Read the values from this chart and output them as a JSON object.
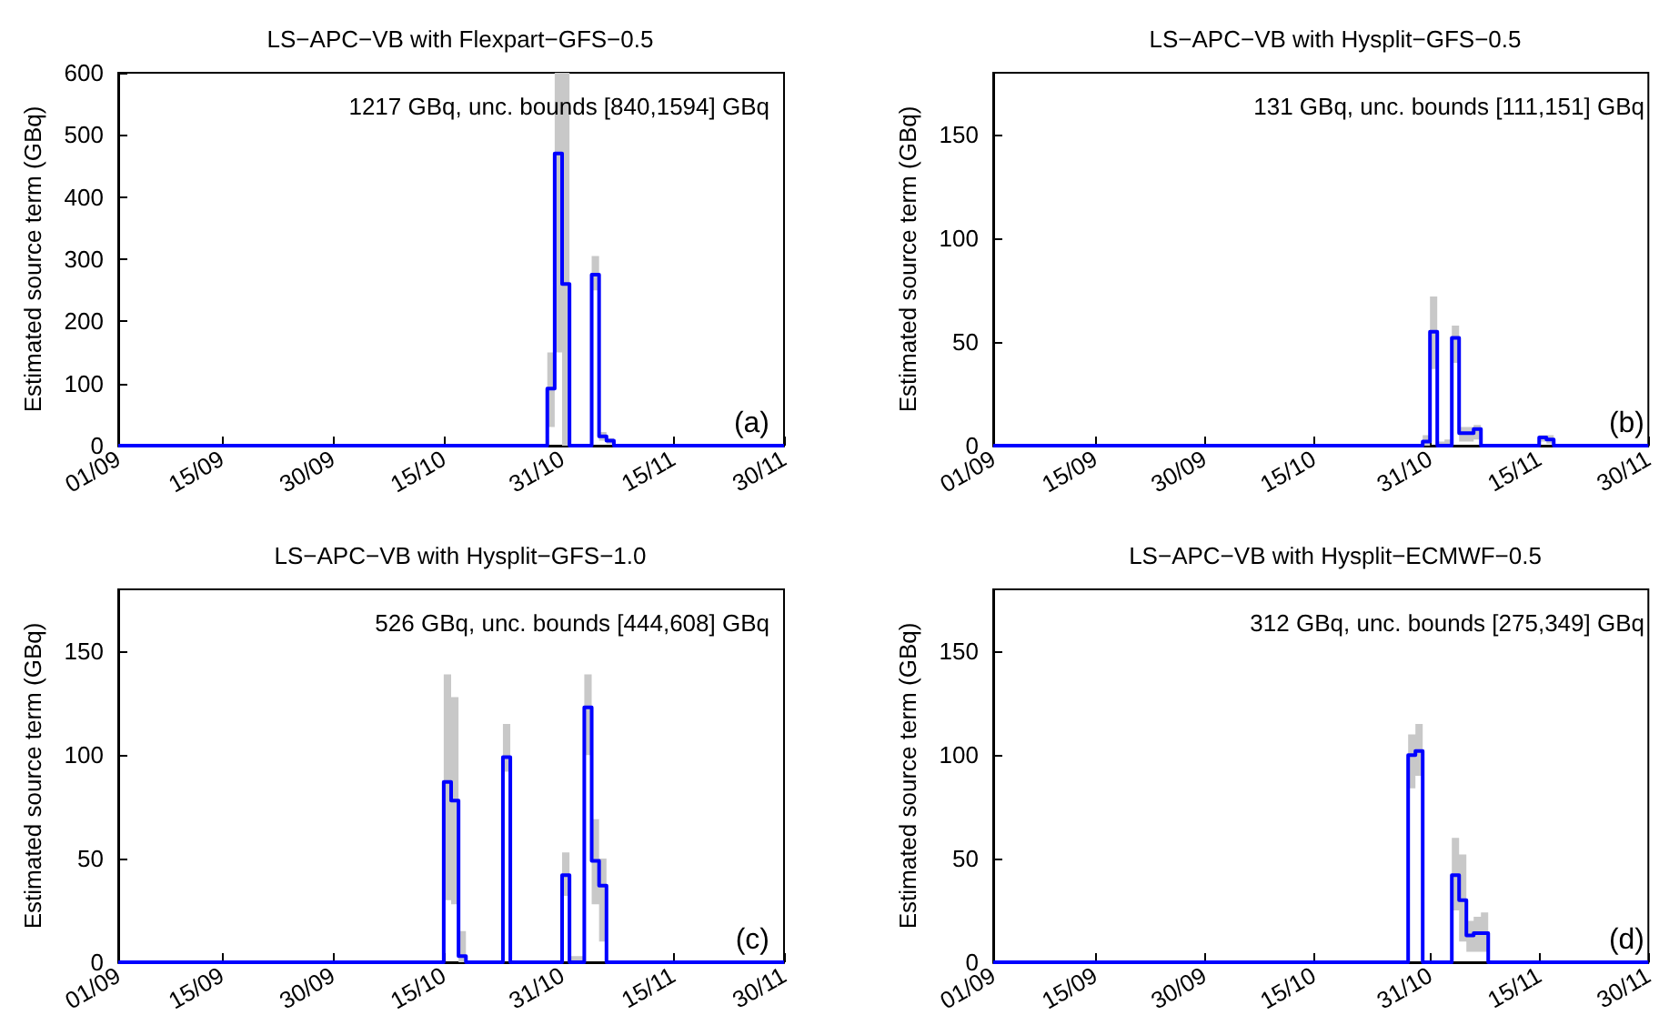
{
  "chart_data": [
    {
      "type": "step",
      "title": "LS−APC−VB with Flexpart−GFS−0.5",
      "ylabel": "Estimated source term (GBq)",
      "annotations": [
        "1217 GBq, unc. bounds [840,1594] GBq",
        "(a)"
      ],
      "x": [
        "--09-01",
        "--10-28",
        "--10-29",
        "--10-30",
        "--10-31",
        "--11-01",
        "--11-02",
        "--11-03",
        "--11-04",
        "--11-05",
        "--11-06",
        "--11-07",
        "--11-30"
      ],
      "series": [
        {
          "color": "#0000ff",
          "values": [
            0,
            0,
            92,
            470,
            260,
            0,
            0,
            0,
            275,
            15,
            8,
            0,
            0
          ],
          "lower": [
            0,
            0,
            30,
            150,
            0,
            0,
            0,
            0,
            250,
            8,
            3,
            0,
            0
          ],
          "upper": [
            0,
            0,
            150,
            600,
            600,
            0,
            0,
            0,
            305,
            22,
            12,
            0,
            0
          ]
        }
      ],
      "xlim": [
        "--09-01",
        "--11-30"
      ],
      "xticks": [
        {
          "value": "--09-01",
          "label": "01/09"
        },
        {
          "value": "--09-15",
          "label": "15/09"
        },
        {
          "value": "--09-30",
          "label": "30/09"
        },
        {
          "value": "--10-15",
          "label": "15/10"
        },
        {
          "value": "--10-31",
          "label": "31/10"
        },
        {
          "value": "--11-15",
          "label": "15/11"
        },
        {
          "value": "--11-30",
          "label": "30/11"
        }
      ],
      "ylim": [
        0,
        600
      ],
      "yticks": [
        0,
        100,
        200,
        300,
        400,
        500,
        600
      ],
      "grid": false
    },
    {
      "type": "step",
      "title": "LS−APC−VB with Hysplit−GFS−0.5",
      "ylabel": "Estimated source term (GBq)",
      "annotations": [
        "131 GBq, unc. bounds [111,151] GBq",
        "(b)"
      ],
      "x": [
        "--09-01",
        "--10-29",
        "--10-30",
        "--10-31",
        "--11-01",
        "--11-02",
        "--11-03",
        "--11-04",
        "--11-05",
        "--11-06",
        "--11-07",
        "--11-14",
        "--11-15",
        "--11-16",
        "--11-17",
        "--11-30"
      ],
      "series": [
        {
          "color": "#0000ff",
          "values": [
            0,
            0,
            2,
            55,
            0,
            0,
            52,
            6,
            6,
            8,
            0,
            0,
            4,
            3,
            0,
            0
          ],
          "lower": [
            0,
            0,
            0,
            37,
            0,
            0,
            40,
            2,
            2,
            3,
            0,
            0,
            2,
            1,
            0,
            0
          ],
          "upper": [
            0,
            0,
            5,
            72,
            2,
            3,
            58,
            9,
            9,
            10,
            0,
            0,
            5,
            5,
            0,
            0
          ]
        }
      ],
      "xlim": [
        "--09-01",
        "--11-30"
      ],
      "xticks": [
        {
          "value": "--09-01",
          "label": "01/09"
        },
        {
          "value": "--09-15",
          "label": "15/09"
        },
        {
          "value": "--09-30",
          "label": "30/09"
        },
        {
          "value": "--10-15",
          "label": "15/10"
        },
        {
          "value": "--10-31",
          "label": "31/10"
        },
        {
          "value": "--11-15",
          "label": "15/11"
        },
        {
          "value": "--11-30",
          "label": "30/11"
        }
      ],
      "ylim": [
        0,
        180
      ],
      "yticks": [
        0,
        50,
        100,
        150
      ],
      "grid": false
    },
    {
      "type": "step",
      "title": "LS−APC−VB with Hysplit−GFS−1.0",
      "ylabel": "Estimated source term (GBq)",
      "annotations": [
        "526 GBq, unc. bounds [444,608] GBq",
        "(c)"
      ],
      "x": [
        "--09-01",
        "--10-14",
        "--10-15",
        "--10-16",
        "--10-17",
        "--10-18",
        "--10-22",
        "--10-23",
        "--10-24",
        "--10-30",
        "--10-31",
        "--11-01",
        "--11-02",
        "--11-03",
        "--11-04",
        "--11-05",
        "--11-06",
        "--11-30"
      ],
      "series": [
        {
          "color": "#0000ff",
          "values": [
            0,
            0,
            87,
            78,
            3,
            0,
            0,
            99,
            0,
            0,
            42,
            0,
            0,
            123,
            49,
            37,
            0,
            0
          ],
          "lower": [
            0,
            0,
            30,
            28,
            0,
            0,
            0,
            92,
            0,
            0,
            32,
            0,
            0,
            100,
            28,
            10,
            0,
            0
          ],
          "upper": [
            0,
            0,
            139,
            128,
            15,
            0,
            0,
            115,
            0,
            0,
            53,
            3,
            3,
            139,
            69,
            50,
            0,
            0
          ]
        }
      ],
      "xlim": [
        "--09-01",
        "--11-30"
      ],
      "xticks": [
        {
          "value": "--09-01",
          "label": "01/09"
        },
        {
          "value": "--09-15",
          "label": "15/09"
        },
        {
          "value": "--09-30",
          "label": "30/09"
        },
        {
          "value": "--10-15",
          "label": "15/10"
        },
        {
          "value": "--10-31",
          "label": "31/10"
        },
        {
          "value": "--11-15",
          "label": "15/11"
        },
        {
          "value": "--11-30",
          "label": "30/11"
        }
      ],
      "ylim": [
        0,
        180
      ],
      "yticks": [
        0,
        50,
        100,
        150
      ],
      "grid": false
    },
    {
      "type": "step",
      "title": "LS−APC−VB with Hysplit−ECMWF−0.5",
      "ylabel": "Estimated source term (GBq)",
      "annotations": [
        "312 GBq, unc. bounds [275,349] GBq",
        "(d)"
      ],
      "x": [
        "--09-01",
        "--10-27",
        "--10-28",
        "--10-29",
        "--10-30",
        "--11-02",
        "--11-03",
        "--11-04",
        "--11-05",
        "--11-06",
        "--11-07",
        "--11-08",
        "--11-30"
      ],
      "series": [
        {
          "color": "#0000ff",
          "values": [
            0,
            0,
            100,
            102,
            0,
            0,
            42,
            30,
            13,
            14,
            14,
            0,
            0
          ],
          "lower": [
            0,
            0,
            84,
            90,
            0,
            0,
            25,
            10,
            5,
            5,
            5,
            0,
            0
          ],
          "upper": [
            0,
            0,
            110,
            115,
            0,
            0,
            60,
            52,
            20,
            22,
            24,
            0,
            0
          ]
        }
      ],
      "xlim": [
        "--09-01",
        "--11-30"
      ],
      "xticks": [
        {
          "value": "--09-01",
          "label": "01/09"
        },
        {
          "value": "--09-15",
          "label": "15/09"
        },
        {
          "value": "--09-30",
          "label": "30/09"
        },
        {
          "value": "--10-15",
          "label": "15/10"
        },
        {
          "value": "--10-31",
          "label": "31/10"
        },
        {
          "value": "--11-15",
          "label": "15/11"
        },
        {
          "value": "--11-30",
          "label": "30/11"
        }
      ],
      "ylim": [
        0,
        180
      ],
      "yticks": [
        0,
        50,
        100,
        150
      ],
      "grid": false
    }
  ]
}
